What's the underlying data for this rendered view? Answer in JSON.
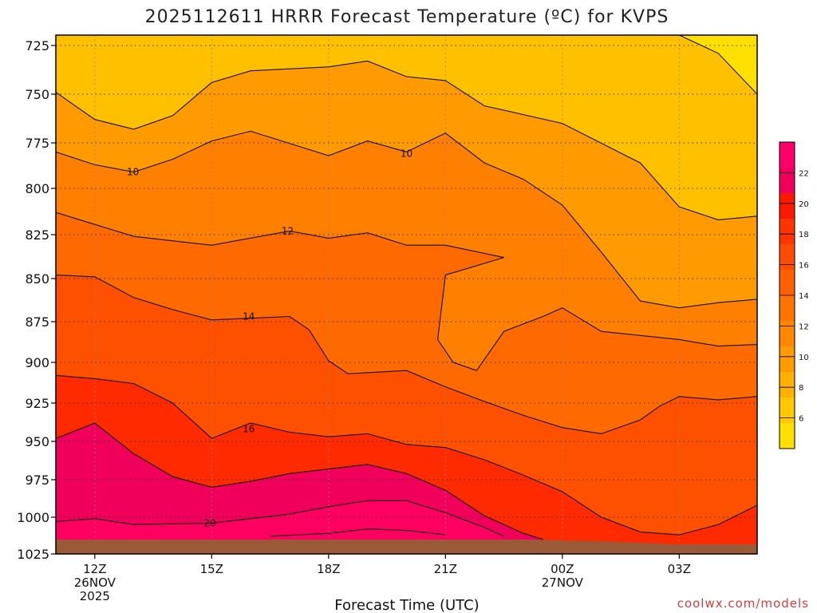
{
  "title": "2025112611 HRRR Forecast Temperature (ºC) for KVPS",
  "credit": "coolwx.com/models",
  "chart_data": {
    "type": "heatmap",
    "title": "2025112611 HRRR Forecast Temperature (ºC) for KVPS",
    "xlabel": "Forecast Time (UTC)",
    "ylabel": "",
    "x_ticks": [
      {
        "hour": 0,
        "lines": [
          "12Z",
          "26NOV",
          "2025"
        ]
      },
      {
        "hour": 3,
        "lines": [
          "15Z"
        ]
      },
      {
        "hour": 6,
        "lines": [
          "18Z"
        ]
      },
      {
        "hour": 9,
        "lines": [
          "21Z"
        ]
      },
      {
        "hour": 12,
        "lines": [
          "00Z",
          "27NOV"
        ]
      },
      {
        "hour": 15,
        "lines": [
          "03Z"
        ]
      }
    ],
    "xlim": [
      -1,
      17
    ],
    "y_ticks": [
      725,
      750,
      775,
      800,
      825,
      850,
      875,
      900,
      925,
      950,
      975,
      1000,
      1025
    ],
    "ylim": [
      720,
      1025
    ],
    "y_scale": "inverted pressure (hPa)",
    "grid": true,
    "colorbar": {
      "ticks": [
        6,
        8,
        10,
        12,
        14,
        16,
        18,
        20,
        22
      ],
      "range": [
        4,
        24
      ],
      "colors": [
        "#ffe000",
        "#ffc800",
        "#ffb000",
        "#ff9a00",
        "#ff8800",
        "#ff7400",
        "#ff6000",
        "#ff4c00",
        "#ff3400",
        "#ff1800",
        "#f0005a",
        "#ff006a"
      ]
    },
    "contour_labels": [
      {
        "text": "10",
        "hour": 0.98,
        "p": 791
      },
      {
        "text": "10",
        "hour": 8.0,
        "p": 781
      },
      {
        "text": "12",
        "hour": 4.95,
        "p": 823
      },
      {
        "text": "14",
        "hour": 3.95,
        "p": 872
      },
      {
        "text": "16",
        "hour": 3.95,
        "p": 942
      },
      {
        "text": "20",
        "hour": 2.95,
        "p": 1004
      }
    ],
    "contours": [
      {
        "level": 6,
        "points": [
          [
            15.0,
            720
          ],
          [
            16.0,
            729
          ],
          [
            17.0,
            750
          ]
        ],
        "fill_side": "top-right"
      },
      {
        "level": 8,
        "points": [
          [
            -1,
            749
          ],
          [
            0,
            763
          ],
          [
            1,
            768
          ],
          [
            2,
            761
          ],
          [
            3,
            744
          ],
          [
            4,
            738
          ],
          [
            6,
            736
          ],
          [
            7,
            733
          ],
          [
            8,
            741
          ],
          [
            9,
            743
          ],
          [
            10,
            756
          ],
          [
            12,
            765
          ],
          [
            14,
            786
          ],
          [
            15,
            810
          ],
          [
            16,
            817
          ],
          [
            17,
            815
          ]
        ]
      },
      {
        "level": 10,
        "points": [
          [
            -1,
            780
          ],
          [
            0,
            787
          ],
          [
            1,
            791
          ],
          [
            2,
            784
          ],
          [
            3,
            774
          ],
          [
            4,
            769
          ],
          [
            6,
            782
          ],
          [
            7,
            774
          ],
          [
            8,
            780
          ],
          [
            9,
            770
          ],
          [
            10,
            786
          ],
          [
            11,
            795
          ],
          [
            12,
            809
          ],
          [
            13,
            835
          ],
          [
            14,
            863
          ],
          [
            15,
            867
          ],
          [
            16,
            864
          ],
          [
            17,
            862
          ]
        ]
      },
      {
        "level": 12,
        "points": [
          [
            -1,
            813
          ],
          [
            1,
            826
          ],
          [
            3,
            831
          ],
          [
            5,
            823
          ],
          [
            6,
            827
          ],
          [
            7,
            824
          ],
          [
            8,
            831
          ],
          [
            9,
            831
          ],
          [
            10.5,
            838
          ],
          [
            9,
            848
          ],
          [
            8.8,
            886
          ],
          [
            9.2,
            900
          ],
          [
            9.8,
            905
          ],
          [
            10.5,
            881
          ],
          [
            11.5,
            872
          ],
          [
            12,
            867
          ],
          [
            13,
            881
          ],
          [
            15,
            886
          ],
          [
            16,
            890
          ],
          [
            17,
            889
          ]
        ]
      },
      {
        "level": 14,
        "points": [
          [
            -1,
            848
          ],
          [
            0,
            849
          ],
          [
            1,
            861
          ],
          [
            2,
            868
          ],
          [
            3,
            874
          ],
          [
            4,
            873
          ],
          [
            5,
            872
          ],
          [
            5.5,
            880
          ],
          [
            6,
            899
          ],
          [
            6.5,
            907
          ],
          [
            8,
            905
          ],
          [
            9,
            915
          ],
          [
            10,
            924
          ],
          [
            11,
            933
          ],
          [
            12,
            941
          ],
          [
            13,
            945
          ],
          [
            14,
            936
          ],
          [
            14.5,
            927
          ],
          [
            15,
            921
          ],
          [
            16,
            923
          ],
          [
            17,
            921
          ]
        ]
      },
      {
        "level": 16,
        "points": [
          [
            -1,
            908
          ],
          [
            0,
            910
          ],
          [
            1,
            913
          ],
          [
            2,
            925
          ],
          [
            3,
            948
          ],
          [
            4,
            938
          ],
          [
            5,
            944
          ],
          [
            6,
            947
          ],
          [
            7,
            945
          ],
          [
            8,
            952
          ],
          [
            9,
            954
          ],
          [
            10,
            962
          ],
          [
            11,
            972
          ],
          [
            12,
            983
          ],
          [
            13,
            1000
          ],
          [
            14,
            1010
          ],
          [
            15,
            1012
          ],
          [
            16,
            1005
          ],
          [
            17,
            992
          ]
        ]
      },
      {
        "level": 18,
        "points": [
          [
            -1,
            948
          ],
          [
            0,
            938
          ],
          [
            1,
            958
          ],
          [
            2,
            973
          ],
          [
            3,
            980
          ],
          [
            4,
            976
          ],
          [
            5,
            971
          ],
          [
            6,
            968
          ],
          [
            7,
            965
          ],
          [
            8,
            971
          ],
          [
            9,
            982
          ],
          [
            10,
            999
          ],
          [
            11,
            1011
          ],
          [
            11.5,
            1015
          ]
        ]
      },
      {
        "level": 20,
        "points": [
          [
            -1,
            1003
          ],
          [
            0,
            1001
          ],
          [
            1,
            1005
          ],
          [
            3,
            1004
          ],
          [
            4,
            1001
          ],
          [
            5,
            998
          ],
          [
            6,
            993
          ],
          [
            7,
            989
          ],
          [
            8,
            989
          ],
          [
            9,
            997
          ],
          [
            10,
            1007
          ],
          [
            10.5,
            1013
          ]
        ]
      },
      {
        "level": 22,
        "points": [
          [
            4.5,
            1013
          ],
          [
            6,
            1011
          ],
          [
            7,
            1008
          ],
          [
            8,
            1009
          ],
          [
            9,
            1012
          ]
        ]
      }
    ]
  }
}
